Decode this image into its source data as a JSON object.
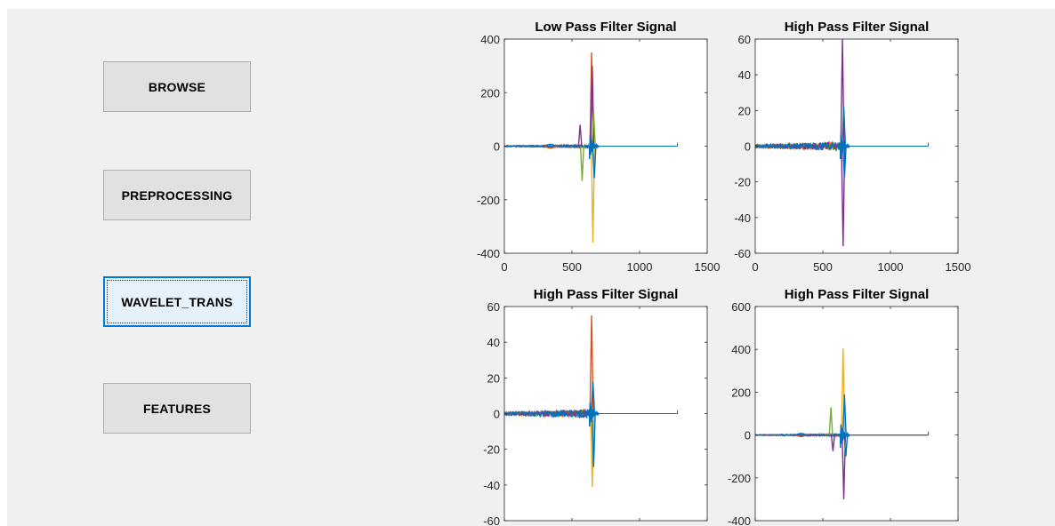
{
  "buttons": [
    {
      "label": "BROWSE",
      "active": false
    },
    {
      "label": "PREPROCESSING",
      "active": false
    },
    {
      "label": "WAVELET_TRANS",
      "active": true
    },
    {
      "label": "FEATURES",
      "active": false
    }
  ],
  "colors": {
    "window_bg": "#f0f0f0",
    "button_bg": "#e1e1e1",
    "button_active_bg": "#e5f1fb",
    "button_active_border": "#0078d7",
    "series": [
      "#0072bd",
      "#d95319",
      "#edb120",
      "#7e2f8e",
      "#77ac30",
      "#4dbeee",
      "#a2142f"
    ]
  },
  "chart_data": [
    {
      "type": "line",
      "title": "Low Pass Filter Signal",
      "xlim": [
        0,
        1500
      ],
      "ylim": [
        -400,
        400
      ],
      "xticks": [
        0,
        500,
        1000,
        1500
      ],
      "yticks": [
        -400,
        -200,
        0,
        200,
        400
      ],
      "baseline_end_x": 1280,
      "burst_center_x": 640,
      "peaks": [
        {
          "x": 645,
          "y": 350,
          "color": "#d95319"
        },
        {
          "x": 655,
          "y": -360,
          "color": "#edb120"
        },
        {
          "x": 650,
          "y": 300,
          "color": "#7e2f8e"
        },
        {
          "x": 560,
          "y": 80,
          "color": "#7e2f8e"
        },
        {
          "x": 575,
          "y": -130,
          "color": "#77ac30"
        },
        {
          "x": 660,
          "y": 130,
          "color": "#77ac30"
        },
        {
          "x": 665,
          "y": -120,
          "color": "#0072bd"
        }
      ],
      "noise_amplitude": 6,
      "small_wave": {
        "x": 340,
        "amplitude": 15
      }
    },
    {
      "type": "line",
      "title": "High Pass Filter Signal",
      "xlim": [
        0,
        1500
      ],
      "ylim": [
        -60,
        60
      ],
      "xticks": [
        0,
        500,
        1000,
        1500
      ],
      "yticks": [
        -60,
        -40,
        -20,
        0,
        20,
        40,
        60
      ],
      "baseline_end_x": 1280,
      "burst_center_x": 640,
      "peaks": [
        {
          "x": 645,
          "y": 60,
          "color": "#7e2f8e"
        },
        {
          "x": 650,
          "y": -56,
          "color": "#7e2f8e"
        },
        {
          "x": 655,
          "y": 22,
          "color": "#0072bd"
        },
        {
          "x": 660,
          "y": -18,
          "color": "#0072bd"
        }
      ],
      "noise_amplitude": 2.5
    },
    {
      "type": "line",
      "title": "High Pass Filter Signal",
      "xlim": [
        0,
        1500
      ],
      "ylim": [
        -60,
        60
      ],
      "xticks": [
        0,
        500,
        1000,
        1500
      ],
      "yticks": [
        -60,
        -40,
        -20,
        0,
        20,
        40,
        60
      ],
      "baseline_end_x": 1280,
      "burst_center_x": 640,
      "peaks": [
        {
          "x": 645,
          "y": 55,
          "color": "#d95319"
        },
        {
          "x": 650,
          "y": -41,
          "color": "#edb120"
        },
        {
          "x": 655,
          "y": 18,
          "color": "#0072bd"
        },
        {
          "x": 660,
          "y": -30,
          "color": "#0072bd"
        }
      ],
      "noise_amplitude": 2.5
    },
    {
      "type": "line",
      "title": "High Pass Filter Signal",
      "xlim": [
        0,
        1500
      ],
      "ylim": [
        -400,
        600
      ],
      "xticks": [
        0,
        500,
        1000,
        1500
      ],
      "yticks": [
        -400,
        -200,
        0,
        200,
        400,
        600
      ],
      "baseline_end_x": 1280,
      "burst_center_x": 640,
      "peaks": [
        {
          "x": 650,
          "y": 405,
          "color": "#edb120"
        },
        {
          "x": 655,
          "y": -300,
          "color": "#7e2f8e"
        },
        {
          "x": 560,
          "y": 130,
          "color": "#77ac30"
        },
        {
          "x": 575,
          "y": -75,
          "color": "#7e2f8e"
        },
        {
          "x": 660,
          "y": 190,
          "color": "#0072bd"
        },
        {
          "x": 670,
          "y": -100,
          "color": "#0072bd"
        }
      ],
      "noise_amplitude": 6,
      "small_wave": {
        "x": 340,
        "amplitude": 15
      }
    }
  ]
}
